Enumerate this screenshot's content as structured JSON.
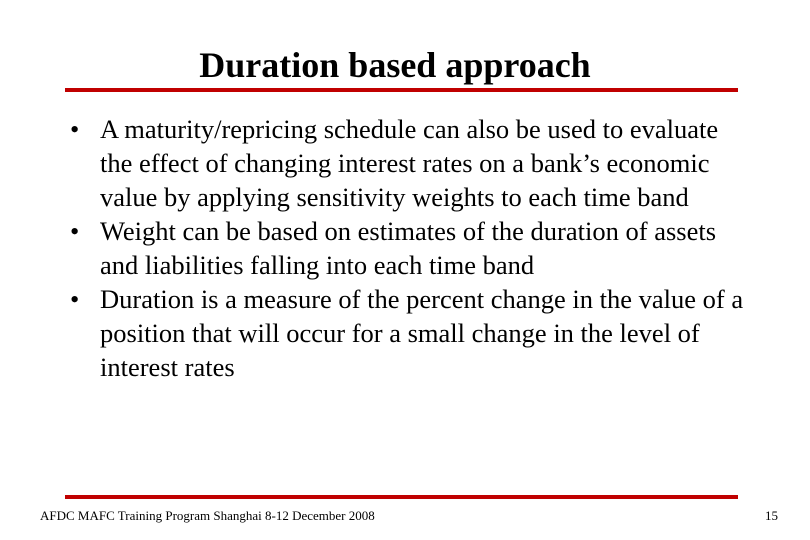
{
  "header": {
    "title": "Duration based approach"
  },
  "bullets": [
    "A maturity/repricing schedule can also be used to evaluate the effect of changing interest rates on a bank’s economic value by applying sensitivity weights to each time band",
    "Weight can be based on estimates of the duration of assets and liabilities falling into each time band",
    "Duration is a measure of the percent change in the value of a position that will occur for a small change in the level of interest rates"
  ],
  "footer": {
    "text": "AFDC MAFC Training Program Shanghai 8-12 December 2008",
    "page": "15"
  }
}
